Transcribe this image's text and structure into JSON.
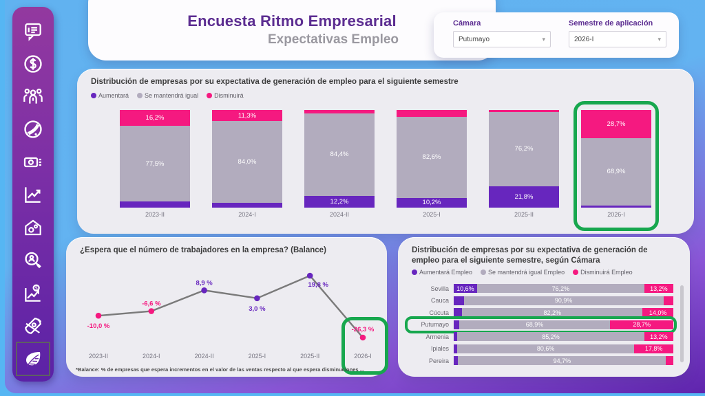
{
  "header": {
    "title": "Encuesta Ritmo Empresarial",
    "subtitle": "Expectativas Empleo"
  },
  "filters": {
    "camara": {
      "label": "Cámara",
      "value": "Putumayo"
    },
    "semestre": {
      "label": "Semestre de aplicación",
      "value": "2026-I"
    }
  },
  "colors": {
    "aumentara": "#6726be",
    "mantendra": "#b2acbe",
    "disminuira": "#f51980",
    "highlight_green": "#17a74e",
    "line": "#7a7a7a"
  },
  "sidebar": {
    "icons": [
      "survey-comment-icon",
      "dollar-circle-icon",
      "people-group-icon",
      "globe-icon",
      "banknote-icon",
      "chart-up-icon",
      "house-gear-icon",
      "search-person-icon",
      "chart-dollar-icon",
      "rocket-icon",
      "leaf-icon"
    ],
    "selected": "leaf-icon"
  },
  "chart_data": [
    {
      "type": "bar",
      "subtype": "stacked-column",
      "title": "Distribución de empresas por su expectativa de generación de empleo para el siguiente semestre",
      "categories": [
        "2023-II",
        "2024-I",
        "2024-II",
        "2025-I",
        "2025-II",
        "2026-I"
      ],
      "series": [
        {
          "name": "Aumentará",
          "color": "#6726be",
          "values": [
            6.3,
            4.7,
            12.2,
            10.2,
            21.8,
            2.4
          ],
          "labels": [
            "",
            "",
            "12,2%",
            "10,2%",
            "21,8%",
            ""
          ]
        },
        {
          "name": "Se mantendrá igual",
          "color": "#b2acbe",
          "values": [
            77.5,
            84.0,
            84.4,
            82.6,
            76.2,
            68.9
          ],
          "labels": [
            "77,5%",
            "84,0%",
            "84,4%",
            "82,6%",
            "76,2%",
            "68,9%"
          ]
        },
        {
          "name": "Disminuirá",
          "color": "#f51980",
          "values": [
            16.2,
            11.3,
            3.4,
            7.2,
            2.0,
            28.7
          ],
          "labels": [
            "16,2%",
            "11,3%",
            "",
            "",
            "",
            "28,7%"
          ]
        }
      ],
      "legend": [
        "Aumentará",
        "Se mantendrá igual",
        "Disminuirá"
      ],
      "legend_position": "top-left",
      "ylim": [
        0,
        100
      ],
      "grid": false,
      "highlight_category": "2026-I"
    },
    {
      "type": "line",
      "title": "¿Espera que el número de trabajadores en la empresa? (Balance)",
      "categories": [
        "2023-II",
        "2024-I",
        "2024-II",
        "2025-I",
        "2025-II",
        "2026-I"
      ],
      "values": [
        -10.0,
        -6.6,
        8.9,
        3.0,
        19.8,
        -26.3
      ],
      "labels": [
        "-10,0 %",
        "-6,6 %",
        "8,9 %",
        "3,0 %",
        "19,8 %",
        "-26,3 %"
      ],
      "positive_color": "#6726be",
      "negative_color": "#f51980",
      "line_color": "#7a7a7a",
      "footnote": "*Balance: % de empresas que espera incrementos en el valor de las ventas respecto al que espera disminuciones ...",
      "grid": false,
      "highlight_category": "2026-I"
    },
    {
      "type": "bar",
      "subtype": "stacked-horizontal",
      "title": "Distribución de empresas por su expectativa de generación de empleo para el siguiente semestre, según Cámara",
      "categories": [
        "Sevilla",
        "Cauca",
        "Cúcuta",
        "Putumayo",
        "Armenia",
        "Ipiales",
        "Pereira"
      ],
      "series": [
        {
          "name": "Aumentará Empleo",
          "color": "#6726be",
          "values": [
            10.6,
            4.6,
            3.8,
            2.4,
            1.6,
            1.6,
            2.0
          ],
          "labels": [
            "10,6%",
            "",
            "",
            "",
            "",
            "",
            ""
          ]
        },
        {
          "name": "Se mantendrá igual Empleo",
          "color": "#b2acbe",
          "values": [
            76.2,
            90.9,
            82.2,
            68.9,
            85.2,
            80.6,
            94.7
          ],
          "labels": [
            "76,2%",
            "90,9%",
            "82,2%",
            "68,9%",
            "85,2%",
            "80,6%",
            "94,7%"
          ]
        },
        {
          "name": "Disminuirá Empleo",
          "color": "#f51980",
          "values": [
            13.2,
            4.5,
            14.0,
            28.7,
            13.2,
            17.8,
            3.3
          ],
          "labels": [
            "13,2%",
            "",
            "14,0%",
            "28,7%",
            "13,2%",
            "17,8%",
            ""
          ]
        }
      ],
      "legend": [
        "Aumentará Empleo",
        "Se mantendrá igual Empleo",
        "Disminuirá Empleo"
      ],
      "legend_position": "top-left",
      "xlim": [
        0,
        100
      ],
      "grid": false,
      "highlight_category": "Putumayo"
    }
  ]
}
